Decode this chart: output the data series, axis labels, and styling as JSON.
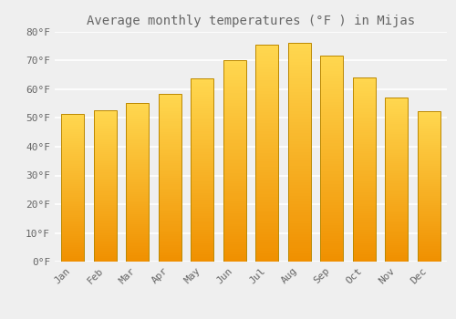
{
  "title": "Average monthly temperatures (°F ) in Mijas",
  "months": [
    "Jan",
    "Feb",
    "Mar",
    "Apr",
    "May",
    "Jun",
    "Jul",
    "Aug",
    "Sep",
    "Oct",
    "Nov",
    "Dec"
  ],
  "values": [
    51.5,
    52.7,
    55.2,
    58.3,
    63.7,
    70.2,
    75.5,
    76.1,
    71.8,
    64.2,
    57.2,
    52.5
  ],
  "bar_color_mid": "#FFB300",
  "bar_color_light": "#FFD050",
  "bar_color_dark": "#F09000",
  "bar_edge_color": "#BB8800",
  "background_color": "#efefef",
  "grid_color": "#ffffff",
  "text_color": "#666666",
  "ylim": [
    0,
    80
  ],
  "yticks": [
    0,
    10,
    20,
    30,
    40,
    50,
    60,
    70,
    80
  ],
  "ytick_labels": [
    "0°F",
    "10°F",
    "20°F",
    "30°F",
    "40°F",
    "50°F",
    "60°F",
    "70°F",
    "80°F"
  ],
  "font_family": "monospace",
  "title_fontsize": 10,
  "tick_fontsize": 8
}
